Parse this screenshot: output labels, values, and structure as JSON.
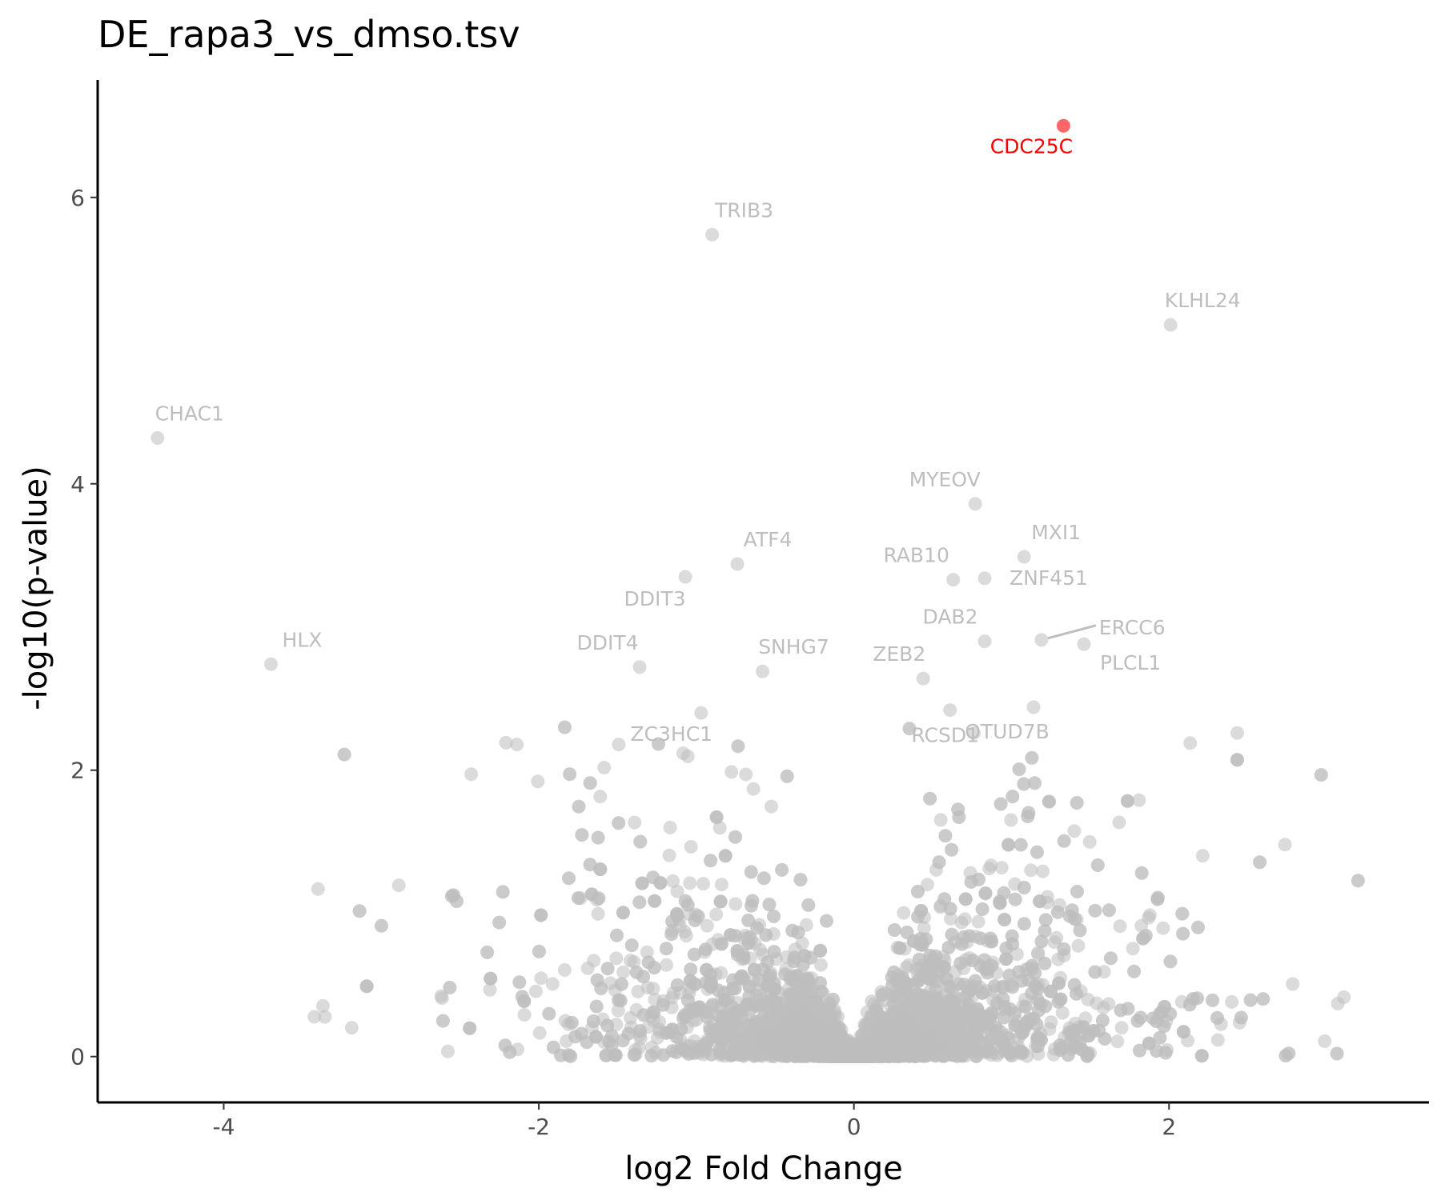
{
  "chart_data": {
    "type": "scatter",
    "title": "DE_rapa3_vs_dmso.tsv",
    "xlabel": "log2 Fold Change",
    "ylabel": "-log10(p-value)",
    "xlim": [
      -4.8,
      3.65
    ],
    "ylim": [
      -0.32,
      6.82
    ],
    "x_ticks": [
      -4,
      -2,
      0,
      2
    ],
    "x_tick_labels": [
      "-4",
      "-2",
      "0",
      "2"
    ],
    "y_ticks": [
      0,
      2,
      4,
      6
    ],
    "y_tick_labels": [
      "0",
      "2",
      "4",
      "6"
    ],
    "grid": false,
    "legend": "none",
    "colors": {
      "background_points": "#bebebe",
      "highlight": "#ff0000",
      "axis": "#000000"
    },
    "labeled_points": [
      {
        "gene": "CDC25C",
        "x": 1.33,
        "y": 6.5,
        "color": "#ff0000"
      },
      {
        "gene": "TRIB3",
        "x": -0.9,
        "y": 5.74,
        "color": "#bebebe"
      },
      {
        "gene": "KLHL24",
        "x": 2.01,
        "y": 5.11,
        "color": "#bebebe"
      },
      {
        "gene": "CHAC1",
        "x": -4.42,
        "y": 4.32,
        "color": "#bebebe"
      },
      {
        "gene": "MYEOV",
        "x": 0.77,
        "y": 3.86,
        "color": "#bebebe"
      },
      {
        "gene": "MXI1",
        "x": 1.08,
        "y": 3.49,
        "color": "#bebebe"
      },
      {
        "gene": "ATF4",
        "x": -0.74,
        "y": 3.44,
        "color": "#bebebe"
      },
      {
        "gene": "DDIT3",
        "x": -1.07,
        "y": 3.35,
        "color": "#bebebe"
      },
      {
        "gene": "RAB10",
        "x": 0.63,
        "y": 3.33,
        "color": "#bebebe"
      },
      {
        "gene": "ZNF451",
        "x": 0.83,
        "y": 3.34,
        "color": "#bebebe"
      },
      {
        "gene": "DAB2",
        "x": 0.83,
        "y": 2.9,
        "color": "#bebebe"
      },
      {
        "gene": "ERCC6",
        "x": 1.19,
        "y": 2.91,
        "color": "#bebebe"
      },
      {
        "gene": "PLCL1",
        "x": 1.46,
        "y": 2.88,
        "color": "#bebebe"
      },
      {
        "gene": "HLX",
        "x": -3.7,
        "y": 2.74,
        "color": "#bebebe"
      },
      {
        "gene": "DDIT4",
        "x": -1.36,
        "y": 2.72,
        "color": "#bebebe"
      },
      {
        "gene": "SNHG7",
        "x": -0.58,
        "y": 2.69,
        "color": "#bebebe"
      },
      {
        "gene": "ZEB2",
        "x": 0.44,
        "y": 2.64,
        "color": "#bebebe"
      },
      {
        "gene": "ZC3HC1",
        "x": -0.97,
        "y": 2.4,
        "color": "#bebebe"
      },
      {
        "gene": "RCSD1",
        "x": 0.61,
        "y": 2.42,
        "color": "#bebebe"
      },
      {
        "gene": "OTUD7B",
        "x": 1.14,
        "y": 2.44,
        "color": "#bebebe"
      }
    ],
    "background_points_note_count": 6000
  }
}
